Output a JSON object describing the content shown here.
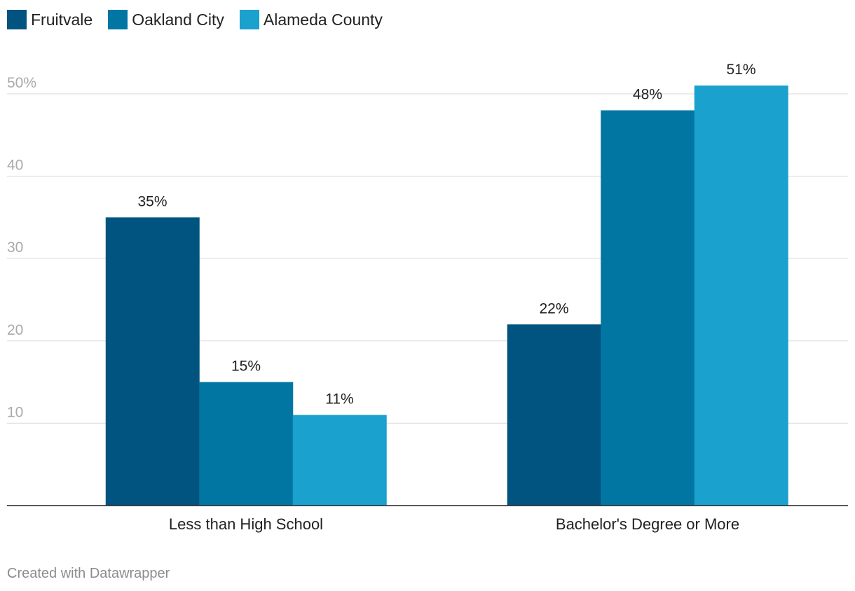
{
  "chart_data": {
    "type": "bar",
    "title": "",
    "xlabel": "",
    "ylabel": "",
    "categories": [
      "Less than High School",
      "Bachelor's Degree or More"
    ],
    "series": [
      {
        "name": "Fruitvale",
        "values": [
          35,
          22
        ],
        "labels": [
          "35%",
          "22%"
        ],
        "color": "#00547f"
      },
      {
        "name": "Oakland City",
        "values": [
          15,
          48
        ],
        "labels": [
          "15%",
          "48%"
        ],
        "color": "#0276a3"
      },
      {
        "name": "Alameda County",
        "values": [
          11,
          51
        ],
        "labels": [
          "11%",
          "51%"
        ],
        "color": "#1aa1ce"
      }
    ],
    "ylim": [
      0,
      50
    ],
    "yticks": [
      10,
      20,
      30,
      40,
      50
    ],
    "ytick_labels": [
      "10",
      "20",
      "30",
      "40",
      "50%"
    ],
    "grid": true,
    "legend_position": "top-left"
  },
  "footer": {
    "credit": "Created with Datawrapper"
  },
  "colors": {
    "grid": "#e0e0e0",
    "axis": "#222222",
    "tick_text": "#aaaaaa",
    "credit_text": "#8c8c8c"
  }
}
